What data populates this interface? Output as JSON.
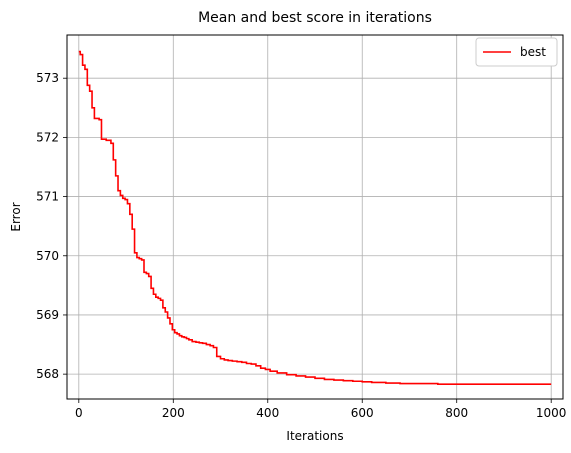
{
  "chart_data": {
    "type": "line",
    "title": "Mean and best score in iterations",
    "xlabel": "Iterations",
    "ylabel": "Error",
    "xlim": [
      -25,
      1025
    ],
    "ylim": [
      567.58,
      573.73
    ],
    "xticks": [
      0,
      200,
      400,
      600,
      800,
      1000
    ],
    "yticks": [
      568,
      569,
      570,
      571,
      572,
      573
    ],
    "grid": true,
    "legend": {
      "location": "upper-right",
      "entries": [
        "best"
      ]
    },
    "series": [
      {
        "name": "best",
        "color": "#ff0000",
        "style": "step",
        "x": [
          0,
          3,
          8,
          13,
          18,
          23,
          28,
          33,
          38,
          43,
          48,
          53,
          58,
          63,
          68,
          73,
          78,
          83,
          88,
          93,
          98,
          103,
          108,
          113,
          118,
          123,
          128,
          133,
          138,
          143,
          148,
          153,
          158,
          163,
          168,
          173,
          178,
          183,
          188,
          193,
          198,
          203,
          208,
          213,
          218,
          223,
          228,
          233,
          240,
          248,
          255,
          262,
          270,
          278,
          285,
          292,
          300,
          308,
          316,
          325,
          335,
          345,
          355,
          365,
          375,
          385,
          395,
          405,
          420,
          440,
          460,
          480,
          500,
          520,
          540,
          560,
          580,
          600,
          620,
          650,
          680,
          720,
          760,
          800,
          850,
          900,
          950,
          1000
        ],
        "y": [
          573.45,
          573.4,
          573.22,
          573.15,
          572.88,
          572.78,
          572.5,
          572.32,
          572.32,
          572.3,
          571.97,
          571.97,
          571.95,
          571.95,
          571.9,
          571.62,
          571.35,
          571.1,
          571.02,
          570.97,
          570.95,
          570.88,
          570.7,
          570.45,
          570.05,
          569.97,
          569.95,
          569.93,
          569.72,
          569.7,
          569.65,
          569.45,
          569.35,
          569.3,
          569.28,
          569.25,
          569.12,
          569.05,
          568.95,
          568.85,
          568.75,
          568.7,
          568.68,
          568.65,
          568.63,
          568.62,
          568.6,
          568.58,
          568.55,
          568.54,
          568.53,
          568.52,
          568.5,
          568.48,
          568.45,
          568.3,
          568.26,
          568.24,
          568.23,
          568.22,
          568.21,
          568.2,
          568.18,
          568.17,
          568.14,
          568.1,
          568.08,
          568.05,
          568.02,
          567.99,
          567.97,
          567.95,
          567.93,
          567.91,
          567.9,
          567.89,
          567.88,
          567.87,
          567.86,
          567.85,
          567.84,
          567.84,
          567.83,
          567.83,
          567.83,
          567.83,
          567.83,
          567.83
        ]
      }
    ]
  }
}
